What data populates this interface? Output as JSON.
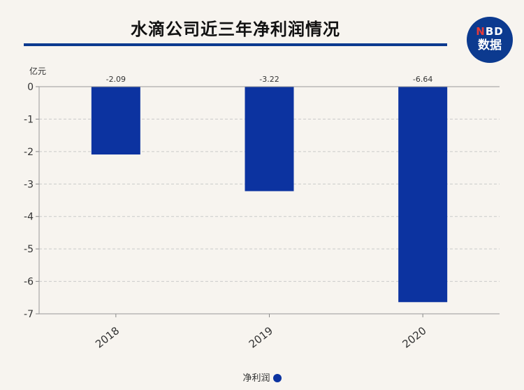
{
  "title": "水滴公司近三年净利润情况",
  "logo": {
    "line1_n": "N",
    "line1_rest": "BD",
    "line2": "数据"
  },
  "chart_data": {
    "type": "bar",
    "title": "水滴公司近三年净利润情况",
    "ylabel": "亿元",
    "xlabel": "",
    "categories": [
      "2018",
      "2019",
      "2020"
    ],
    "series": [
      {
        "name": "净利润",
        "values": [
          -2.09,
          -3.22,
          -6.64
        ]
      }
    ],
    "data_labels": [
      "-2.09",
      "-3.22",
      "-6.64"
    ],
    "ylim": [
      -7,
      0
    ],
    "yticks": [
      0,
      -1,
      -2,
      -3,
      -4,
      -5,
      -6,
      -7
    ],
    "grid": true,
    "legend_position": "bottom-center",
    "colors": {
      "bar": "#0c33a0",
      "accent": "#0c3a8f"
    }
  }
}
